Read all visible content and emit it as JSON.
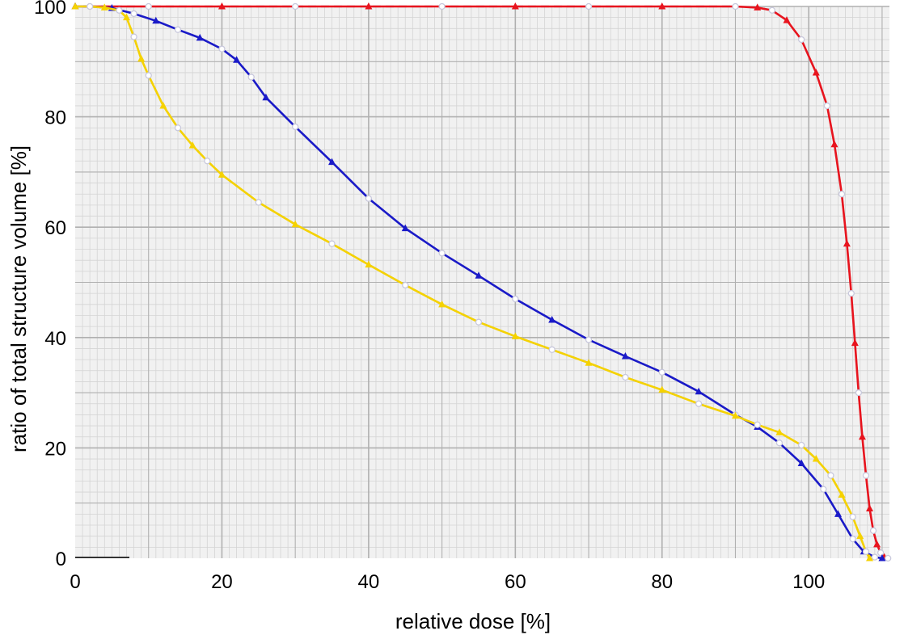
{
  "chart_data": {
    "type": "line",
    "title": "",
    "xlabel": "relative dose [%]",
    "ylabel": "ratio of total structure volume [%]",
    "xlim": [
      0,
      111
    ],
    "ylim": [
      0,
      100
    ],
    "xticks": [
      0,
      20,
      40,
      60,
      80,
      100
    ],
    "yticks": [
      0,
      20,
      40,
      60,
      80,
      100
    ],
    "grid": true,
    "legend": "none",
    "series": [
      {
        "color": "#e8141e",
        "marker": "triangle",
        "x": [
          0,
          10,
          20,
          30,
          40,
          50,
          60,
          70,
          80,
          90,
          93,
          95,
          97,
          99,
          101,
          102.5,
          103.5,
          104.5,
          105.2,
          105.8,
          106.3,
          106.8,
          107.3,
          107.8,
          108.3,
          108.8,
          109.3,
          109.8,
          110.3,
          110.8
        ],
        "y": [
          100,
          100,
          100,
          100,
          100,
          100,
          100,
          100,
          100,
          100,
          99.8,
          99.3,
          97.5,
          94,
          88,
          82,
          75,
          66,
          57,
          48,
          39,
          30,
          22,
          15,
          9,
          5,
          2.5,
          1,
          0.2,
          0
        ]
      },
      {
        "color": "#1a1ac8",
        "marker": "triangle",
        "x": [
          0,
          2,
          5,
          8,
          11,
          14,
          17,
          20,
          22,
          24,
          26,
          30,
          35,
          40,
          45,
          50,
          55,
          60,
          65,
          70,
          75,
          80,
          85,
          90,
          93,
          96,
          99,
          102,
          104,
          106,
          107.5,
          109,
          110
        ],
        "y": [
          100,
          100,
          99.7,
          98.7,
          97.4,
          95.8,
          94.3,
          92.3,
          90.3,
          87.2,
          83.5,
          78.2,
          71.8,
          65.2,
          59.8,
          55.3,
          51.2,
          47,
          43.2,
          39.6,
          36.6,
          33.7,
          30.2,
          26,
          23.8,
          20.9,
          17.2,
          12.5,
          8,
          3.5,
          1.2,
          0.2,
          0
        ]
      },
      {
        "color": "#f5d200",
        "marker": "triangle",
        "x": [
          0,
          2,
          4,
          6,
          7,
          8,
          9,
          10,
          12,
          14,
          16,
          18,
          20,
          25,
          30,
          35,
          40,
          45,
          50,
          55,
          60,
          65,
          70,
          75,
          80,
          85,
          90,
          93,
          96,
          99,
          101,
          103,
          104.5,
          106,
          107,
          107.8,
          108.3
        ],
        "y": [
          100,
          100,
          99.8,
          99.3,
          98,
          94.5,
          90.5,
          87.5,
          82,
          78,
          74.8,
          72,
          69.5,
          64.5,
          60.5,
          57,
          53.2,
          49.5,
          46,
          42.8,
          40.2,
          37.8,
          35.4,
          32.8,
          30.5,
          28,
          25.8,
          24.2,
          22.8,
          20.5,
          18,
          15,
          11.5,
          7.5,
          4,
          1.2,
          0
        ]
      }
    ]
  }
}
